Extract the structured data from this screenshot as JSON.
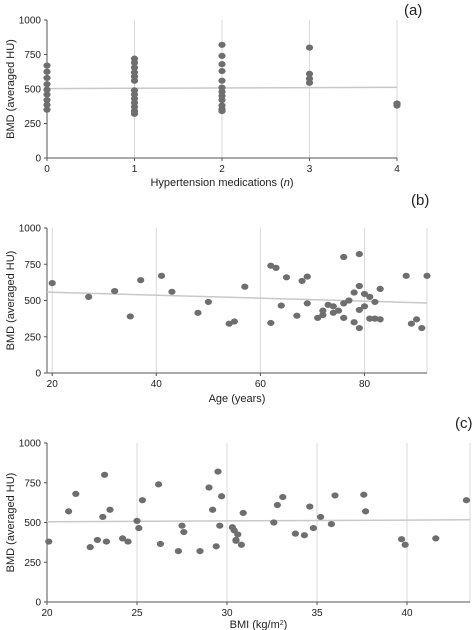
{
  "chart_data": [
    {
      "type": "scatter",
      "panel_label": "(a)",
      "xlabel_main": "Hypertension medications (",
      "xlabel_var": "n",
      "xlabel_end": ")",
      "ylabel": "BMD (averaged HU)",
      "xlim": [
        0,
        4
      ],
      "ylim": [
        0,
        1000
      ],
      "xticks": [
        0,
        1,
        2,
        3,
        4
      ],
      "yticks": [
        0,
        250,
        500,
        750,
        1000
      ],
      "grid": "vertical",
      "colors": {
        "points": "#6e6e6e",
        "trend": "#c8c8c8",
        "grid": "#d9d9d9"
      },
      "points": [
        [
          0,
          670
        ],
        [
          0,
          625
        ],
        [
          0,
          580
        ],
        [
          0,
          535
        ],
        [
          0,
          495
        ],
        [
          0,
          460
        ],
        [
          0,
          420
        ],
        [
          0,
          385
        ],
        [
          0,
          350
        ],
        [
          1,
          720
        ],
        [
          1,
          690
        ],
        [
          1,
          655
        ],
        [
          1,
          620
        ],
        [
          1,
          590
        ],
        [
          1,
          560
        ],
        [
          1,
          490
        ],
        [
          1,
          460
        ],
        [
          1,
          430
        ],
        [
          1,
          400
        ],
        [
          1,
          370
        ],
        [
          1,
          340
        ],
        [
          1,
          320
        ],
        [
          2,
          820
        ],
        [
          2,
          740
        ],
        [
          2,
          680
        ],
        [
          2,
          630
        ],
        [
          2,
          560
        ],
        [
          2,
          510
        ],
        [
          2,
          480
        ],
        [
          2,
          450
        ],
        [
          2,
          420
        ],
        [
          2,
          380
        ],
        [
          2,
          355
        ],
        [
          2,
          340
        ],
        [
          3,
          800
        ],
        [
          3,
          610
        ],
        [
          3,
          575
        ],
        [
          3,
          545
        ],
        [
          4,
          395
        ],
        [
          4,
          380
        ]
      ],
      "trendline": [
        [
          0,
          503
        ],
        [
          4,
          512
        ]
      ]
    },
    {
      "type": "scatter",
      "panel_label": "(b)",
      "xlabel": "Age (years)",
      "ylabel": "BMD (averaged HU)",
      "xlim": [
        19,
        92
      ],
      "ylim": [
        0,
        1000
      ],
      "xticks": [
        20,
        40,
        60,
        80
      ],
      "yticks": [
        0,
        250,
        500,
        750,
        1000
      ],
      "grid": "vertical",
      "colors": {
        "points": "#6e6e6e",
        "trend": "#c8c8c8",
        "grid": "#d9d9d9"
      },
      "points": [
        [
          20,
          620
        ],
        [
          27,
          525
        ],
        [
          32,
          565
        ],
        [
          35,
          390
        ],
        [
          37,
          640
        ],
        [
          41,
          670
        ],
        [
          43,
          560
        ],
        [
          48,
          415
        ],
        [
          50,
          490
        ],
        [
          54,
          340
        ],
        [
          55,
          355
        ],
        [
          57,
          595
        ],
        [
          62,
          740
        ],
        [
          62,
          345
        ],
        [
          63,
          725
        ],
        [
          64,
          465
        ],
        [
          65,
          660
        ],
        [
          67,
          395
        ],
        [
          68,
          635
        ],
        [
          69,
          665
        ],
        [
          69,
          480
        ],
        [
          71,
          380
        ],
        [
          72,
          400
        ],
        [
          72,
          430
        ],
        [
          73,
          470
        ],
        [
          74,
          460
        ],
        [
          74,
          415
        ],
        [
          75,
          430
        ],
        [
          76,
          800
        ],
        [
          76,
          480
        ],
        [
          76,
          380
        ],
        [
          77,
          500
        ],
        [
          78,
          350
        ],
        [
          78,
          555
        ],
        [
          79,
          820
        ],
        [
          79,
          600
        ],
        [
          79,
          435
        ],
        [
          79,
          310
        ],
        [
          80,
          545
        ],
        [
          80,
          460
        ],
        [
          81,
          375
        ],
        [
          81,
          525
        ],
        [
          82,
          490
        ],
        [
          82,
          375
        ],
        [
          83,
          580
        ],
        [
          83,
          370
        ],
        [
          88,
          670
        ],
        [
          89,
          340
        ],
        [
          90,
          370
        ],
        [
          91,
          310
        ],
        [
          92,
          670
        ]
      ],
      "trendline": [
        [
          19,
          558
        ],
        [
          92,
          483
        ]
      ]
    },
    {
      "type": "scatter",
      "panel_label": "(c)",
      "xlabel_main": "BMI (kg/m",
      "xlabel_sup": "2",
      "xlabel_end": ")",
      "ylabel": "BMD (averaged HU)",
      "xlim": [
        20,
        43.5
      ],
      "ylim": [
        0,
        1000
      ],
      "xticks": [
        20,
        25,
        30,
        35,
        40
      ],
      "yticks": [
        0,
        250,
        500,
        750,
        1000
      ],
      "grid": "vertical",
      "colors": {
        "points": "#6e6e6e",
        "trend": "#c8c8c8",
        "grid": "#d9d9d9"
      },
      "points": [
        [
          20.1,
          380
        ],
        [
          21.2,
          570
        ],
        [
          21.6,
          680
        ],
        [
          22.4,
          345
        ],
        [
          22.8,
          390
        ],
        [
          23.1,
          535
        ],
        [
          23.2,
          800
        ],
        [
          23.3,
          380
        ],
        [
          23.5,
          580
        ],
        [
          24.2,
          400
        ],
        [
          24.5,
          380
        ],
        [
          25.0,
          510
        ],
        [
          25.1,
          465
        ],
        [
          25.3,
          640
        ],
        [
          26.2,
          740
        ],
        [
          26.3,
          365
        ],
        [
          27.3,
          320
        ],
        [
          27.5,
          480
        ],
        [
          27.6,
          440
        ],
        [
          28.5,
          320
        ],
        [
          29.0,
          720
        ],
        [
          29.2,
          580
        ],
        [
          29.4,
          350
        ],
        [
          29.5,
          820
        ],
        [
          29.6,
          480
        ],
        [
          29.7,
          665
        ],
        [
          30.3,
          470
        ],
        [
          30.4,
          450
        ],
        [
          30.5,
          390
        ],
        [
          30.6,
          425
        ],
        [
          30.8,
          360
        ],
        [
          30.9,
          560
        ],
        [
          30.5,
          385
        ],
        [
          32.6,
          500
        ],
        [
          32.8,
          610
        ],
        [
          33.1,
          660
        ],
        [
          33.8,
          430
        ],
        [
          34.3,
          420
        ],
        [
          34.6,
          600
        ],
        [
          34.8,
          465
        ],
        [
          35.2,
          535
        ],
        [
          35.8,
          490
        ],
        [
          36.0,
          670
        ],
        [
          37.6,
          675
        ],
        [
          37.7,
          570
        ],
        [
          39.7,
          395
        ],
        [
          39.9,
          360
        ],
        [
          41.6,
          400
        ],
        [
          43.3,
          640
        ]
      ],
      "trendline": [
        [
          20,
          505
        ],
        [
          43.5,
          517
        ]
      ]
    }
  ]
}
